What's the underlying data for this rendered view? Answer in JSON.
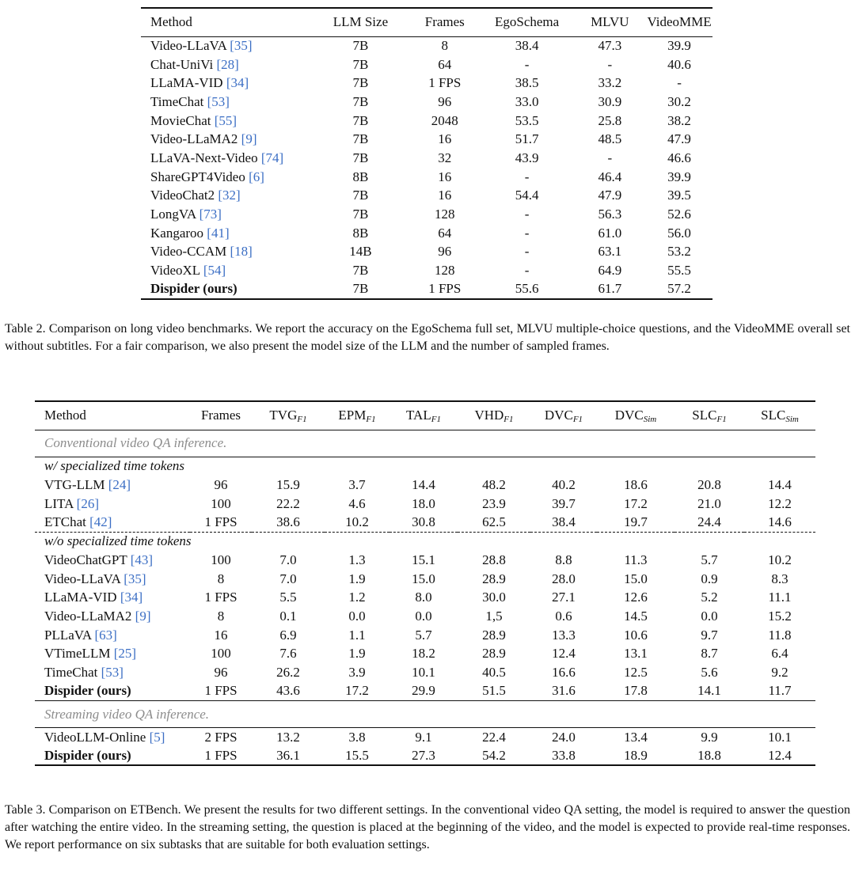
{
  "table2": {
    "headers": [
      "Method",
      "LLM Size",
      "Frames",
      "EgoSchema",
      "MLVU",
      "VideoMME"
    ],
    "rows": [
      {
        "method": "Video-LLaVA",
        "ref": "[35]",
        "llm": "7B",
        "frames": "8",
        "ego": "38.4",
        "mlvu": "47.3",
        "vmme": "39.9"
      },
      {
        "method": "Chat-UniVi",
        "ref": "[28]",
        "llm": "7B",
        "frames": "64",
        "ego": "-",
        "mlvu": "-",
        "vmme": "40.6"
      },
      {
        "method": "LLaMA-VID",
        "ref": "[34]",
        "llm": "7B",
        "frames": "1 FPS",
        "ego": "38.5",
        "mlvu": "33.2",
        "vmme": "-"
      },
      {
        "method": "TimeChat",
        "ref": "[53]",
        "llm": "7B",
        "frames": "96",
        "ego": "33.0",
        "mlvu": "30.9",
        "vmme": "30.2"
      },
      {
        "method": "MovieChat",
        "ref": "[55]",
        "llm": "7B",
        "frames": "2048",
        "ego": "53.5",
        "mlvu": "25.8",
        "vmme": "38.2"
      },
      {
        "method": "Video-LLaMA2",
        "ref": "[9]",
        "llm": "7B",
        "frames": "16",
        "ego": "51.7",
        "mlvu": "48.5",
        "vmme": "47.9"
      },
      {
        "method": "LLaVA-Next-Video",
        "ref": "[74]",
        "llm": "7B",
        "frames": "32",
        "ego": "43.9",
        "mlvu": "-",
        "vmme": "46.6"
      },
      {
        "method": "ShareGPT4Video",
        "ref": "[6]",
        "llm": "8B",
        "frames": "16",
        "ego": "-",
        "mlvu": "46.4",
        "vmme": "39.9"
      },
      {
        "method": "VideoChat2",
        "ref": "[32]",
        "llm": "7B",
        "frames": "16",
        "ego": "54.4",
        "mlvu": "47.9",
        "vmme": "39.5"
      },
      {
        "method": "LongVA",
        "ref": "[73]",
        "llm": "7B",
        "frames": "128",
        "ego": "-",
        "mlvu": "56.3",
        "vmme": "52.6"
      },
      {
        "method": "Kangaroo",
        "ref": "[41]",
        "llm": "8B",
        "frames": "64",
        "ego": "-",
        "mlvu": "61.0",
        "vmme": "56.0"
      },
      {
        "method": "Video-CCAM",
        "ref": "[18]",
        "llm": "14B",
        "frames": "96",
        "ego": "-",
        "mlvu": "63.1",
        "vmme": "53.2"
      },
      {
        "method": "VideoXL",
        "ref": "[54]",
        "llm": "7B",
        "frames": "128",
        "ego": "-",
        "mlvu": "64.9",
        "vmme": "55.5"
      },
      {
        "method": "Dispider (ours)",
        "ref": "",
        "llm": "7B",
        "frames": "1 FPS",
        "ego": "55.6",
        "mlvu": "61.7",
        "vmme": "57.2",
        "bold": true
      }
    ],
    "caption": "Table 2. Comparison on long video benchmarks. We report the accuracy on the EgoSchema full set, MLVU multiple-choice questions, and the VideoMME overall set without subtitles. For a fair comparison, we also present the model size of the LLM and the number of sampled frames."
  },
  "table3": {
    "headers": [
      {
        "main": "Method",
        "sub": ""
      },
      {
        "main": "Frames",
        "sub": ""
      },
      {
        "main": "TVG",
        "sub": "F1"
      },
      {
        "main": "EPM",
        "sub": "F1"
      },
      {
        "main": "TAL",
        "sub": "F1"
      },
      {
        "main": "VHD",
        "sub": "F1"
      },
      {
        "main": "DVC",
        "sub": "F1"
      },
      {
        "main": "DVC",
        "sub": "Sim"
      },
      {
        "main": "SLC",
        "sub": "F1"
      },
      {
        "main": "SLC",
        "sub": "Sim"
      }
    ],
    "section_conventional": "Conventional video QA inference.",
    "subsection_with": "w/ specialized time tokens",
    "rows_with": [
      {
        "method": "VTG-LLM",
        "ref": "[24]",
        "vals": [
          "96",
          "15.9",
          "3.7",
          "14.4",
          "48.2",
          "40.2",
          "18.6",
          "20.8",
          "14.4"
        ]
      },
      {
        "method": "LITA",
        "ref": "[26]",
        "vals": [
          "100",
          "22.2",
          "4.6",
          "18.0",
          "23.9",
          "39.7",
          "17.2",
          "21.0",
          "12.2"
        ]
      },
      {
        "method": "ETChat",
        "ref": "[42]",
        "vals": [
          "1 FPS",
          "38.6",
          "10.2",
          "30.8",
          "62.5",
          "38.4",
          "19.7",
          "24.4",
          "14.6"
        ]
      }
    ],
    "subsection_without": "w/o specialized time tokens",
    "rows_without": [
      {
        "method": "VideoChatGPT",
        "ref": "[43]",
        "vals": [
          "100",
          "7.0",
          "1.3",
          "15.1",
          "28.8",
          "8.8",
          "11.3",
          "5.7",
          "10.2"
        ]
      },
      {
        "method": "Video-LLaVA",
        "ref": "[35]",
        "vals": [
          "8",
          "7.0",
          "1.9",
          "15.0",
          "28.9",
          "28.0",
          "15.0",
          "0.9",
          "8.3"
        ]
      },
      {
        "method": "LLaMA-VID",
        "ref": "[34]",
        "vals": [
          "1 FPS",
          "5.5",
          "1.2",
          "8.0",
          "30.0",
          "27.1",
          "12.6",
          "5.2",
          "11.1"
        ]
      },
      {
        "method": "Video-LLaMA2",
        "ref": "[9]",
        "vals": [
          "8",
          "0.1",
          "0.0",
          "0.0",
          "1,5",
          "0.6",
          "14.5",
          "0.0",
          "15.2"
        ]
      },
      {
        "method": "PLLaVA",
        "ref": "[63]",
        "vals": [
          "16",
          "6.9",
          "1.1",
          "5.7",
          "28.9",
          "13.3",
          "10.6",
          "9.7",
          "11.8"
        ]
      },
      {
        "method": "VTimeLLM",
        "ref": "[25]",
        "vals": [
          "100",
          "7.6",
          "1.9",
          "18.2",
          "28.9",
          "12.4",
          "13.1",
          "8.7",
          "6.4"
        ]
      },
      {
        "method": "TimeChat",
        "ref": "[53]",
        "vals": [
          "96",
          "26.2",
          "3.9",
          "10.1",
          "40.5",
          "16.6",
          "12.5",
          "5.6",
          "9.2"
        ]
      },
      {
        "method": "Dispider (ours)",
        "ref": "",
        "bold": true,
        "vals": [
          "1 FPS",
          "43.6",
          "17.2",
          "29.9",
          "51.5",
          "31.6",
          "17.8",
          "14.1",
          "11.7"
        ]
      }
    ],
    "section_streaming": "Streaming video QA inference.",
    "rows_streaming": [
      {
        "method": "VideoLLM-Online",
        "ref": "[5]",
        "vals": [
          "2 FPS",
          "13.2",
          "3.8",
          "9.1",
          "22.4",
          "24.0",
          "13.4",
          "9.9",
          "10.1"
        ]
      },
      {
        "method": "Dispider (ours)",
        "ref": "",
        "bold": true,
        "vals": [
          "1 FPS",
          "36.1",
          "15.5",
          "27.3",
          "54.2",
          "33.8",
          "18.9",
          "18.8",
          "12.4"
        ]
      }
    ],
    "caption": "Table 3. Comparison on ETBench. We present the results for two different settings. In the conventional video QA setting, the model is required to answer the question after watching the entire video. In the streaming setting, the question is placed at the beginning of the video, and the model is expected to provide real-time responses. We report performance on six subtasks that are suitable for both evaluation settings."
  }
}
